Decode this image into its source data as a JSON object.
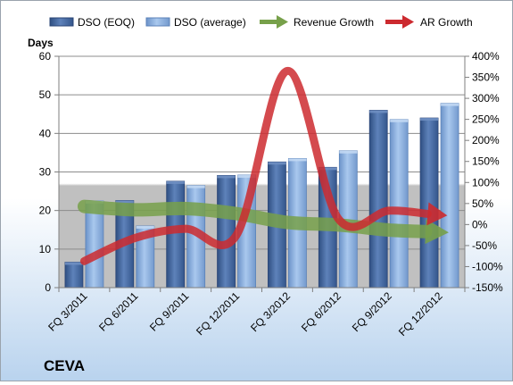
{
  "chart_data": {
    "type": "bar",
    "company": "CEVA",
    "y_unit_label": "Days",
    "categories": [
      "FQ 3/2011",
      "FQ 6/2011",
      "FQ 9/2011",
      "FQ 12/2011",
      "FQ 3/2012",
      "FQ 6/2012",
      "FQ 9/2012",
      "FQ 12/2012"
    ],
    "ylim": [
      0,
      60
    ],
    "y_ticks": [
      0,
      10,
      20,
      30,
      40,
      50,
      60
    ],
    "y2lim": [
      -150,
      400
    ],
    "y2_ticks": [
      "-150%",
      "-100%",
      "-50%",
      "0%",
      "50%",
      "100%",
      "150%",
      "200%",
      "250%",
      "300%",
      "350%",
      "400%"
    ],
    "grid": true,
    "legend_position": "top",
    "series": [
      {
        "name": "DSO (EOQ)",
        "kind": "bar",
        "axis": "left",
        "color": "#4f6fa3",
        "values": [
          6.6,
          22.6,
          27.6,
          29.1,
          32.6,
          31.2,
          46.0,
          44.0
        ]
      },
      {
        "name": "DSO (average)",
        "kind": "bar",
        "axis": "left",
        "color": "#8eb4e3",
        "values": [
          22.5,
          16.0,
          26.5,
          29.2,
          33.5,
          35.5,
          43.6,
          47.8
        ]
      },
      {
        "name": "Revenue Growth",
        "kind": "arrow-line",
        "axis": "right",
        "color": "#77a04a",
        "values": [
          43,
          35,
          38,
          26,
          5,
          -1,
          -13,
          -18
        ]
      },
      {
        "name": "AR Growth",
        "kind": "arrow-line",
        "axis": "right",
        "color": "#cc2a2f",
        "values": [
          -87,
          -32,
          -10,
          -25,
          365,
          15,
          33,
          23
        ]
      }
    ]
  }
}
